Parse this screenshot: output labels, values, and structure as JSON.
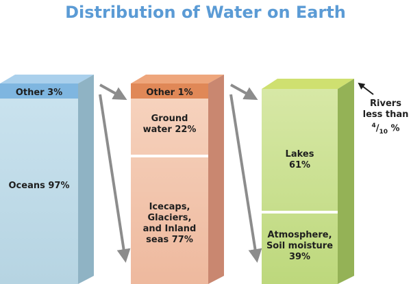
{
  "title": "Distribution of Water on Earth",
  "colors": {
    "title": "#5b9bd5",
    "blue_front_top": "#c9e2ee",
    "blue_front_bottom": "#bcd9e6",
    "blue_side": "#8fb3c4",
    "blue_cap": "#7fb6e0",
    "orange_front_top": "#f6d2bd",
    "orange_front_bottom": "#f0bfa5",
    "orange_side": "#c98770",
    "orange_cap": "#e08857",
    "green_front_top": "#d4e6a0",
    "green_front_bottom": "#c2db82",
    "green_side": "#94b256",
    "green_cap": "#bcd34e",
    "arrow": "#8c8c8c"
  },
  "columns": [
    {
      "id": "earth_water",
      "cap_label": "Other 3%",
      "segments": [
        {
          "label": "Oceans 97%"
        }
      ]
    },
    {
      "id": "other_3",
      "cap_label": "Other 1%",
      "segments": [
        {
          "label": "Ground water 22%"
        },
        {
          "label": "Icecaps, Glaciers, and Inland seas 77%"
        }
      ]
    },
    {
      "id": "other_1",
      "cap_label": "",
      "segments": [
        {
          "label": "Lakes 61%"
        },
        {
          "label": "Atmosphere, Soil moisture 39%"
        }
      ]
    }
  ],
  "rivers_note": {
    "line1": "Rivers",
    "line2": "less than",
    "numerator": "4",
    "denominator": "10",
    "unit": "%"
  }
}
